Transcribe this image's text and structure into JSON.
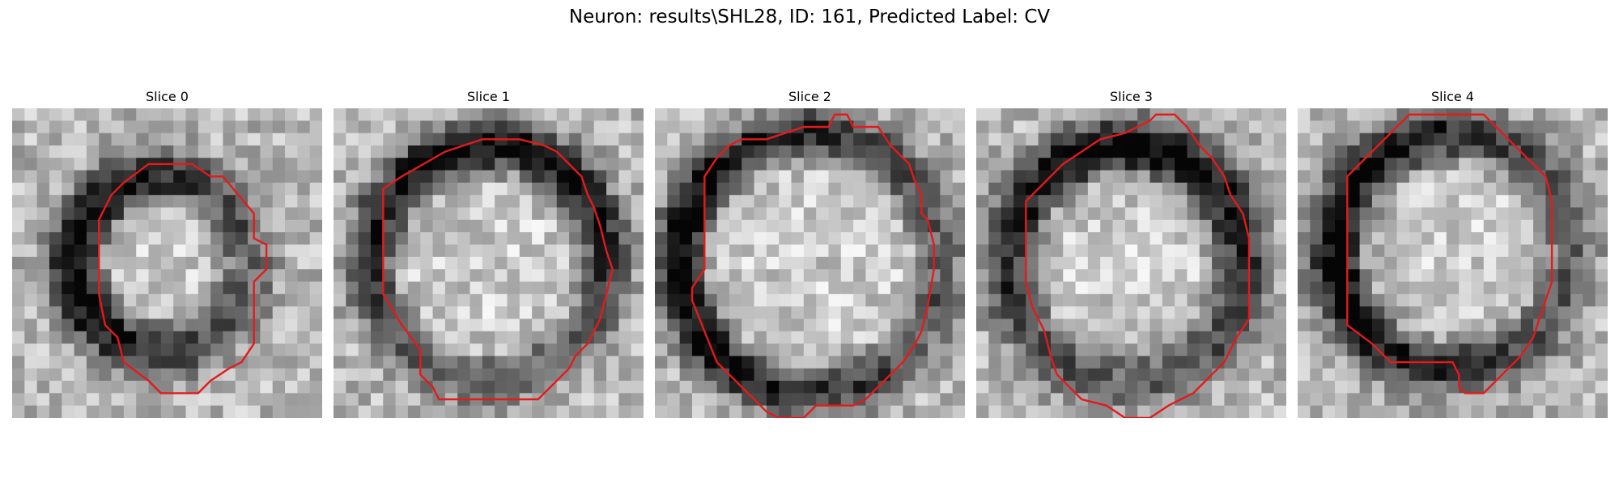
{
  "figure": {
    "title": "Neuron: results\\SHL28, ID: 161, Predicted Label: CV"
  },
  "colors": {
    "contour": "#e41a1c",
    "background": "#ffffff"
  },
  "slices": [
    {
      "title": "Slice 0"
    },
    {
      "title": "Slice 1"
    },
    {
      "title": "Slice 2"
    },
    {
      "title": "Slice 3"
    },
    {
      "title": "Slice 4"
    }
  ]
}
